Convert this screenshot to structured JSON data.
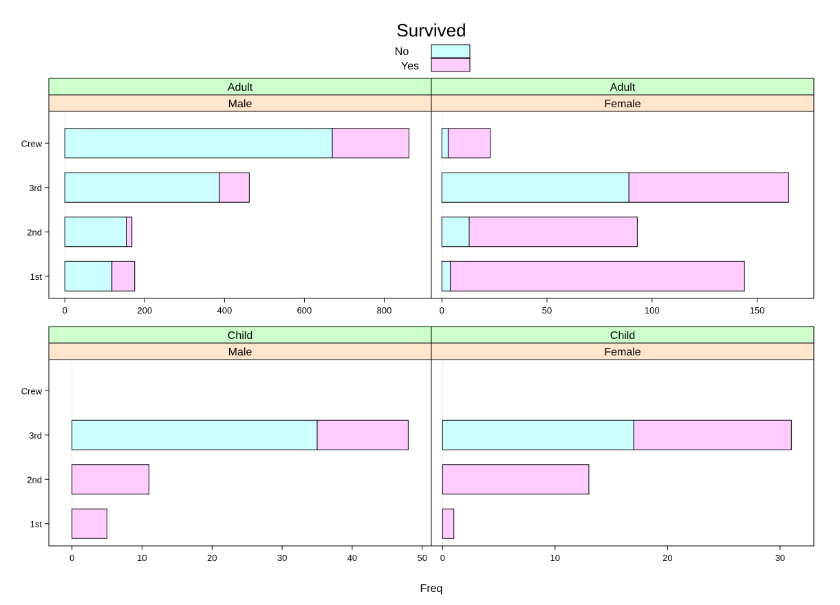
{
  "chart_data": {
    "type": "bar",
    "orientation": "horizontal",
    "stacked": true,
    "legend": {
      "title": "Survived",
      "entries": [
        {
          "label": "No",
          "color": "#ccffff"
        },
        {
          "label": "Yes",
          "color": "#ffccff"
        }
      ],
      "placement": "top"
    },
    "xlabel": "Freq",
    "categories": [
      "1st",
      "2nd",
      "3rd",
      "Crew"
    ],
    "strip_colors": {
      "age": "#ccffcc",
      "sex": "#ffe5cc"
    },
    "panels": [
      {
        "age": "Adult",
        "sex": "Male",
        "xlim": [
          -40,
          918
        ],
        "ticks": [
          0,
          200,
          400,
          600,
          800
        ],
        "series": [
          {
            "name": "No",
            "values": [
              118,
              154,
              387,
              670
            ]
          },
          {
            "name": "Yes",
            "values": [
              57,
              14,
              75,
              192
            ]
          }
        ]
      },
      {
        "age": "Adult",
        "sex": "Female",
        "xlim": [
          -5,
          177
        ],
        "ticks": [
          0,
          50,
          100,
          150
        ],
        "series": [
          {
            "name": "No",
            "values": [
              4,
              13,
              89,
              3
            ]
          },
          {
            "name": "Yes",
            "values": [
              140,
              80,
              76,
              20
            ]
          }
        ]
      },
      {
        "age": "Child",
        "sex": "Male",
        "xlim": [
          -3.3,
          51.3
        ],
        "ticks": [
          0,
          10,
          20,
          30,
          40,
          50
        ],
        "series": [
          {
            "name": "No",
            "values": [
              0,
              0,
              35,
              0
            ]
          },
          {
            "name": "Yes",
            "values": [
              5,
              11,
              13,
              0
            ]
          }
        ]
      },
      {
        "age": "Child",
        "sex": "Female",
        "xlim": [
          -1,
          33
        ],
        "ticks": [
          0,
          10,
          20,
          30
        ],
        "series": [
          {
            "name": "No",
            "values": [
              0,
              0,
              17,
              0
            ]
          },
          {
            "name": "Yes",
            "values": [
              1,
              13,
              14,
              0
            ]
          }
        ]
      }
    ]
  }
}
